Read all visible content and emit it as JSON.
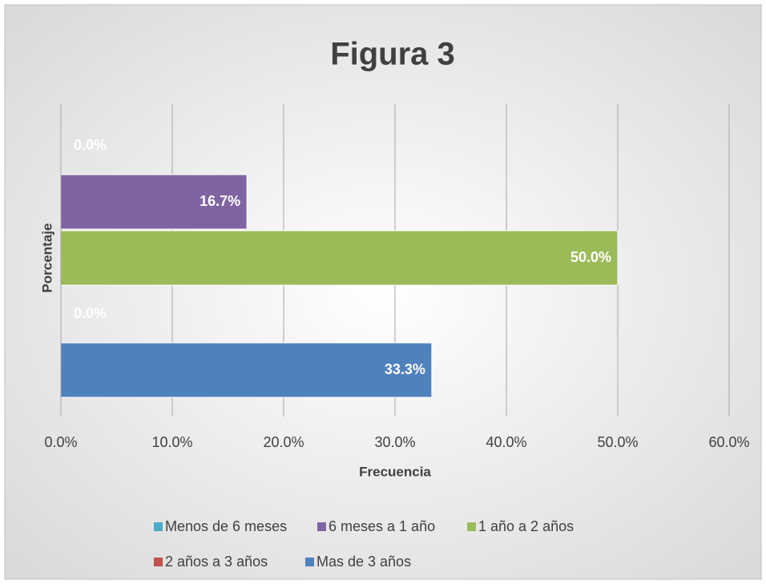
{
  "chart_data": {
    "type": "bar",
    "orientation": "horizontal",
    "title": "Figura 3",
    "x_label": "Frecuencia",
    "y_label": "Porcentaje",
    "categories": [
      null
    ],
    "series": [
      {
        "name": "Menos de 6 meses",
        "color": "#4bacc6",
        "values": [
          0
        ],
        "value_labels": [
          "0.0%"
        ]
      },
      {
        "name": "6 meses a 1 año",
        "color": "#8064a2",
        "values": [
          16.7
        ],
        "value_labels": [
          "16.7%"
        ]
      },
      {
        "name": "1 año a 2 años",
        "color": "#9bbb59",
        "values": [
          50
        ],
        "value_labels": [
          "50.0%"
        ]
      },
      {
        "name": "2 años a 3 años",
        "color": "#c0504d",
        "values": [
          0
        ],
        "value_labels": [
          "0.0%"
        ]
      },
      {
        "name": "Mas de 3 años",
        "color": "#4f81bd",
        "values": [
          33.3
        ],
        "value_labels": [
          "33.3%"
        ]
      }
    ],
    "xlim": [
      0,
      60
    ],
    "xticks": [
      {
        "value": 0,
        "label": "0.0%"
      },
      {
        "value": 10,
        "label": "10.0%"
      },
      {
        "value": 20,
        "label": "20.0%"
      },
      {
        "value": 30,
        "label": "30.0%"
      },
      {
        "value": 40,
        "label": "40.0%"
      },
      {
        "value": 50,
        "label": "50.0%"
      },
      {
        "value": 60,
        "label": "60.0%"
      }
    ],
    "grid": true,
    "legend": "bottom"
  }
}
